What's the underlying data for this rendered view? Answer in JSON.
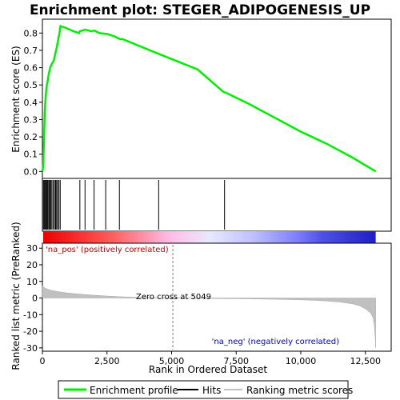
{
  "chart_data": {
    "type": "line",
    "title": "Enrichment plot: STEGER_ADIPOGENESIS_UP",
    "es_panel": {
      "ylabel": "Enrichment score (ES)",
      "ylim": [
        -0.04,
        0.88
      ],
      "yticks": [
        "0.0",
        "0.1",
        "0.2",
        "0.3",
        "0.4",
        "0.5",
        "0.6",
        "0.7",
        "0.8"
      ],
      "ytick_values": [
        0.0,
        0.1,
        0.2,
        0.3,
        0.4,
        0.5,
        0.6,
        0.7,
        0.8
      ],
      "series": {
        "name": "Enrichment profile",
        "color": "#00ee00",
        "points": [
          [
            0,
            0.0
          ],
          [
            30,
            0.03
          ],
          [
            60,
            0.17
          ],
          [
            90,
            0.34
          ],
          [
            120,
            0.42
          ],
          [
            160,
            0.49
          ],
          [
            200,
            0.52
          ],
          [
            240,
            0.56
          ],
          [
            300,
            0.6
          ],
          [
            360,
            0.62
          ],
          [
            440,
            0.64
          ],
          [
            500,
            0.68
          ],
          [
            560,
            0.72
          ],
          [
            610,
            0.76
          ],
          [
            660,
            0.8
          ],
          [
            700,
            0.84
          ],
          [
            900,
            0.83
          ],
          [
            1200,
            0.81
          ],
          [
            1420,
            0.8
          ],
          [
            1450,
            0.81
          ],
          [
            1650,
            0.82
          ],
          [
            1900,
            0.81
          ],
          [
            2000,
            0.815
          ],
          [
            2200,
            0.8
          ],
          [
            2450,
            0.795
          ],
          [
            2500,
            0.795
          ],
          [
            2800,
            0.78
          ],
          [
            3000,
            0.765
          ],
          [
            3100,
            0.765
          ],
          [
            4000,
            0.71
          ],
          [
            4500,
            0.68
          ],
          [
            5000,
            0.65
          ],
          [
            6000,
            0.59
          ],
          [
            7000,
            0.46
          ],
          [
            7100,
            0.455
          ],
          [
            8000,
            0.39
          ],
          [
            9000,
            0.31
          ],
          [
            10000,
            0.23
          ],
          [
            11000,
            0.16
          ],
          [
            12000,
            0.08
          ],
          [
            12900,
            0.0
          ]
        ]
      }
    },
    "hits": {
      "name": "Hits",
      "positions": [
        40,
        70,
        100,
        130,
        160,
        190,
        220,
        260,
        300,
        330,
        370,
        420,
        470,
        510,
        550,
        590,
        640,
        690,
        1450,
        1650,
        2000,
        2450,
        2980,
        4500,
        7050
      ]
    },
    "heatmap_bar": {
      "colors": [
        "#ee0000",
        "#ff5a5a",
        "#ffbce6",
        "#e8e8ff",
        "#c0c0ff",
        "#8080ff",
        "#4f4fe8",
        "#1e1ec8"
      ]
    },
    "metric_panel": {
      "ylabel": "Ranked list metric (PreRanked)",
      "ylim": [
        -32,
        33
      ],
      "yticks": [
        "30",
        "20",
        "10",
        "0",
        "-10",
        "-20",
        "-30"
      ],
      "ytick_values": [
        30,
        20,
        10,
        0,
        -10,
        -20,
        -30
      ],
      "series": {
        "name": "Ranking metric scores",
        "color": "#c0c0c0",
        "points": [
          [
            0,
            7.5
          ],
          [
            100,
            6.0
          ],
          [
            300,
            4.8
          ],
          [
            600,
            3.8
          ],
          [
            1000,
            3.0
          ],
          [
            1500,
            2.3
          ],
          [
            2000,
            1.7
          ],
          [
            2500,
            1.2
          ],
          [
            3000,
            0.8
          ],
          [
            3500,
            0.5
          ],
          [
            4000,
            0.3
          ],
          [
            4500,
            0.15
          ],
          [
            5049,
            0.0
          ],
          [
            5500,
            -0.1
          ],
          [
            6000,
            -0.2
          ],
          [
            7000,
            -0.35
          ],
          [
            8000,
            -0.5
          ],
          [
            9000,
            -0.75
          ],
          [
            10000,
            -1.1
          ],
          [
            10500,
            -1.4
          ],
          [
            11000,
            -1.8
          ],
          [
            11500,
            -2.4
          ],
          [
            12000,
            -3.5
          ],
          [
            12300,
            -4.8
          ],
          [
            12500,
            -6.5
          ],
          [
            12700,
            -9.0
          ],
          [
            12800,
            -12.0
          ],
          [
            12850,
            -17.0
          ],
          [
            12880,
            -24.0
          ],
          [
            12900,
            -30.0
          ]
        ]
      },
      "pos_label": "'na_pos' (positively correlated)",
      "neg_label": "'na_neg' (negatively correlated)",
      "zero_cross_label": "Zero cross at 5049",
      "zero_cross": 5049
    },
    "xaxis": {
      "xlabel": "Rank in Ordered Dataset",
      "xlim": [
        0,
        13500
      ],
      "xticks": [
        "0",
        "2,500",
        "5,000",
        "7,500",
        "10,000",
        "12,500"
      ],
      "xtick_values": [
        0,
        2500,
        5000,
        7500,
        10000,
        12500
      ]
    },
    "legend": {
      "placement": "bottom",
      "entries": [
        {
          "label": "Enrichment profile",
          "color": "#00ee00"
        },
        {
          "label": "Hits",
          "color": "#000000"
        },
        {
          "label": "Ranking metric scores",
          "color": "#c0c0c0"
        }
      ]
    }
  }
}
